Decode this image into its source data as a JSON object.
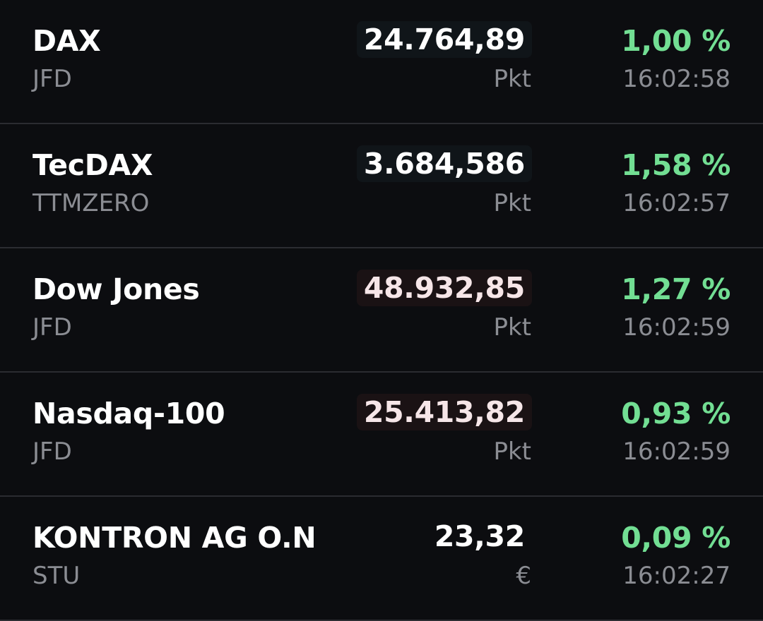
{
  "watchlist": {
    "rows": [
      {
        "name": "DAX",
        "exchange": "JFD",
        "price": "24.764,89",
        "unit": "Pkt",
        "change": "1,00 %",
        "time": "16:02:58",
        "price_state": "flash-neutral"
      },
      {
        "name": "TecDAX",
        "exchange": "TTMZERO",
        "price": "3.684,586",
        "unit": "Pkt",
        "change": "1,58 %",
        "time": "16:02:57",
        "price_state": "flash-neutral"
      },
      {
        "name": "Dow Jones",
        "exchange": "JFD",
        "price": "48.932,85",
        "unit": "Pkt",
        "change": "1,27 %",
        "time": "16:02:59",
        "price_state": "flash-down"
      },
      {
        "name": "Nasdaq-100",
        "exchange": "JFD",
        "price": "25.413,82",
        "unit": "Pkt",
        "change": "0,93 %",
        "time": "16:02:59",
        "price_state": "flash-down"
      },
      {
        "name": "KONTRON AG O.N",
        "exchange": "STU",
        "price": "23,32",
        "unit": "€",
        "change": "0,09 %",
        "time": "16:02:27",
        "price_state": "plain"
      }
    ]
  },
  "colors": {
    "background": "#0c0d10",
    "positive": "#72de93",
    "secondary_text": "#8b8d93",
    "divider": "#2b2c31"
  }
}
